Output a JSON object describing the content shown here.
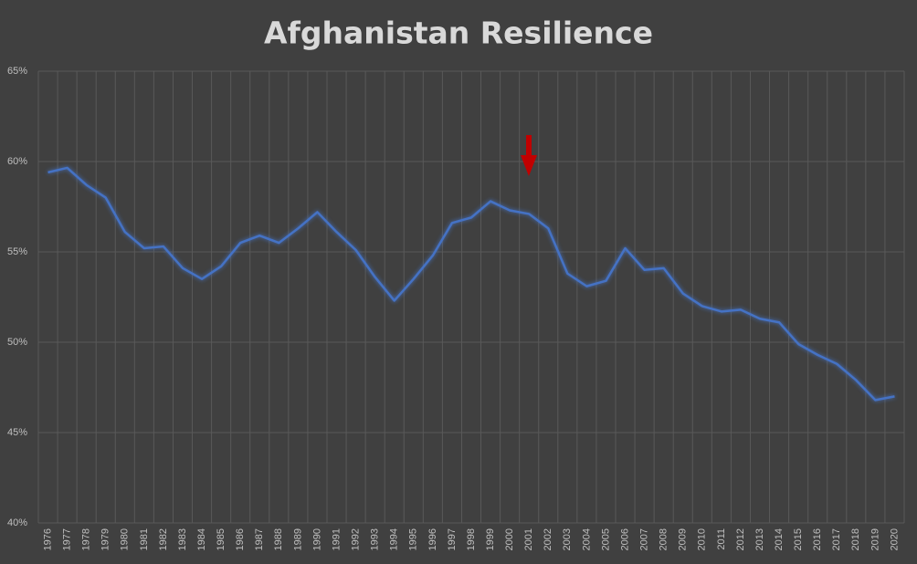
{
  "chart_data": {
    "type": "line",
    "title": "Afghanistan Resilience",
    "categories": [
      "1976",
      "1977",
      "1978",
      "1979",
      "1980",
      "1981",
      "1982",
      "1983",
      "1984",
      "1985",
      "1986",
      "1987",
      "1988",
      "1989",
      "1990",
      "1991",
      "1992",
      "1993",
      "1994",
      "1995",
      "1996",
      "1997",
      "1998",
      "1999",
      "2000",
      "2001",
      "2002",
      "2003",
      "2004",
      "2005",
      "2006",
      "2007",
      "2008",
      "2009",
      "2010",
      "2011",
      "2012",
      "2013",
      "2014",
      "2015",
      "2016",
      "2017",
      "2018",
      "2019",
      "2020"
    ],
    "values": [
      59.4,
      59.65,
      58.7,
      58.0,
      56.1,
      55.2,
      55.3,
      54.1,
      53.5,
      54.2,
      55.5,
      55.9,
      55.5,
      56.3,
      57.2,
      56.1,
      55.1,
      53.6,
      52.3,
      53.5,
      54.8,
      56.6,
      56.9,
      57.8,
      57.3,
      57.1,
      56.3,
      53.8,
      53.1,
      53.4,
      55.2,
      54.0,
      54.1,
      52.7,
      52.0,
      51.7,
      51.8,
      51.3,
      51.1,
      49.9,
      49.3,
      48.8,
      47.9,
      46.8,
      47.0
    ],
    "color": "#4472c4",
    "ylim": [
      40,
      65
    ],
    "yticks": [
      {
        "value": 40,
        "label": "40%"
      },
      {
        "value": 45,
        "label": "45%"
      },
      {
        "value": 50,
        "label": "50%"
      },
      {
        "value": 55,
        "label": "55%"
      },
      {
        "value": 60,
        "label": "60%"
      },
      {
        "value": 65,
        "label": "65%"
      }
    ],
    "grid": true
  }
}
